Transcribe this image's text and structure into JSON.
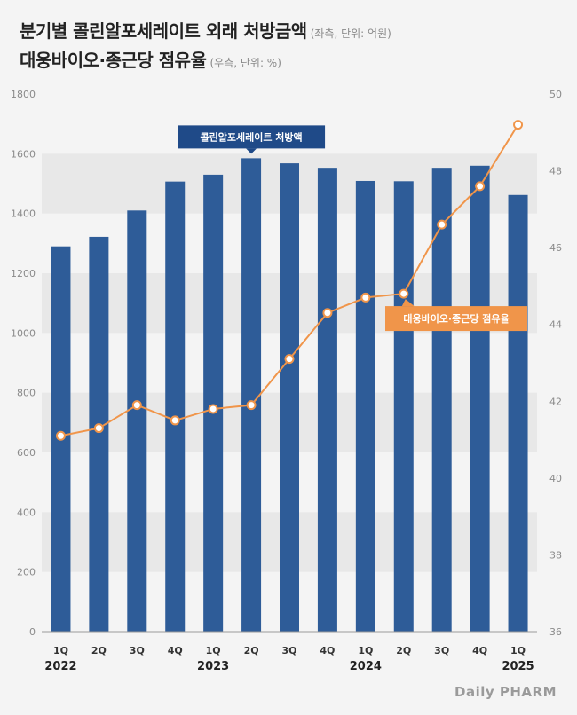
{
  "title": {
    "line1": "분기별 콜린알포세레이트 외래 처방금액",
    "line1_note": "(좌측, 단위: 억원)",
    "line2": "대웅바이오·종근당 점유율",
    "line2_note": "(우측, 단위: %)"
  },
  "brand": "Daily PHARM",
  "colors": {
    "bar": "#2e5c98",
    "line": "#f0954a",
    "bar_label_bg": "#1f4a88",
    "line_label_bg": "#f0954a",
    "band": "#e8e8e8"
  },
  "chart_data": {
    "type": "bar",
    "categories": [
      "1Q 2022",
      "2Q 2022",
      "3Q 2022",
      "4Q 2022",
      "1Q 2023",
      "2Q 2023",
      "3Q 2023",
      "4Q 2023",
      "1Q 2024",
      "2Q 2024",
      "3Q 2024",
      "4Q 2024",
      "1Q 2025"
    ],
    "x_quarter_labels": [
      "1Q",
      "2Q",
      "3Q",
      "4Q",
      "1Q",
      "2Q",
      "3Q",
      "4Q",
      "1Q",
      "2Q",
      "3Q",
      "4Q",
      "1Q"
    ],
    "x_year_labels": [
      "2022",
      "",
      "",
      "",
      "2023",
      "",
      "",
      "",
      "2024",
      "",
      "",
      "",
      "2025"
    ],
    "series": [
      {
        "name": "콜린알포세레이트 처방액",
        "type": "bar",
        "axis": "left",
        "values": [
          1290,
          1322,
          1410,
          1507,
          1530,
          1585,
          1568,
          1553,
          1509,
          1508,
          1553,
          1560,
          1462
        ]
      },
      {
        "name": "대웅바이오·종근당 점유율",
        "type": "line",
        "axis": "right",
        "values": [
          41.1,
          41.3,
          41.9,
          41.5,
          41.8,
          41.9,
          43.1,
          44.3,
          44.7,
          44.8,
          46.6,
          47.6,
          49.2
        ]
      }
    ],
    "ylim_left": [
      0,
      1800
    ],
    "yticks_left": [
      0,
      200,
      400,
      600,
      800,
      1000,
      1200,
      1400,
      1600,
      1800
    ],
    "ylim_right": [
      36,
      50
    ],
    "yticks_right": [
      36,
      38,
      40,
      42,
      44,
      46,
      48,
      50
    ],
    "grid": "alternating horizontal bands",
    "legend": "callout labels"
  }
}
